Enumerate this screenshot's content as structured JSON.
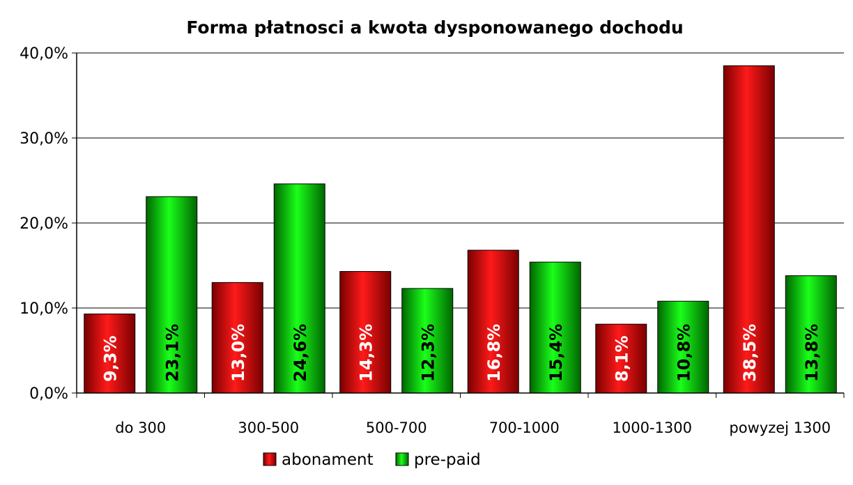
{
  "chart_data": {
    "type": "bar",
    "title": "Forma płatnosci a kwota dysponowanego dochodu",
    "categories": [
      "do 300",
      "300-500",
      "500-700",
      "700-1000",
      "1000-1300",
      "powyzej 1300"
    ],
    "series": [
      {
        "name": "abonament",
        "values": [
          9.3,
          13.0,
          14.3,
          16.8,
          8.1,
          38.5
        ],
        "labels": [
          "9,3%",
          "13,0%",
          "14,3%",
          "16,8%",
          "8,1%",
          "38,5%"
        ],
        "color": "#e00000",
        "label_color": "#ffffff"
      },
      {
        "name": "pre-paid",
        "values": [
          23.1,
          24.6,
          12.3,
          15.4,
          10.8,
          13.8
        ],
        "labels": [
          "23,1%",
          "24,6%",
          "12,3%",
          "15,4%",
          "10,8%",
          "13,8%"
        ],
        "color": "#00cc00",
        "label_color": "#000000"
      }
    ],
    "ylim": [
      0,
      40
    ],
    "yticks": [
      0,
      10,
      20,
      30,
      40
    ],
    "ytick_labels": [
      "0,0%",
      "10,0%",
      "20,0%",
      "30,0%",
      "40,0%"
    ],
    "grid": true,
    "legend": "bottom-center"
  }
}
